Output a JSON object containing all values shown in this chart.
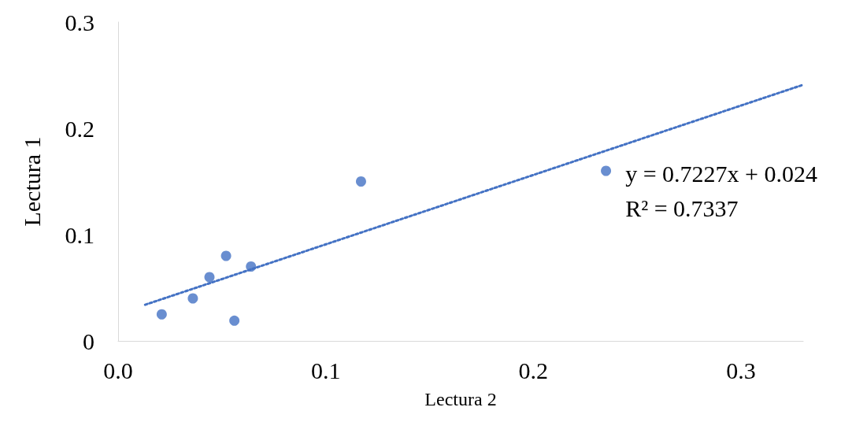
{
  "chart_data": {
    "type": "scatter",
    "xlabel": "Lectura 2",
    "ylabel": "Lectura 1",
    "xlim": [
      0,
      0.33
    ],
    "xticks": [
      {
        "value": 0,
        "label": "0.0"
      },
      {
        "value": 0.1,
        "label": "0.1"
      },
      {
        "value": 0.2,
        "label": "0.2"
      },
      {
        "value": 0.3,
        "label": "0.3"
      }
    ],
    "ylim": [
      0,
      0.3
    ],
    "yticks": [
      0,
      0.1,
      0.2,
      0.3
    ],
    "grid": false,
    "marker": "circle",
    "series": [
      {
        "type": "scatter",
        "color": "#4472c4",
        "x": [
          0.021,
          0.036,
          0.044,
          0.052,
          0.056,
          0.064,
          0.117,
          0.235
        ],
        "values": [
          0.025,
          0.04,
          0.06,
          0.08,
          0.019,
          0.07,
          0.15,
          0.16
        ]
      },
      {
        "type": "line",
        "color": "#4472c4",
        "line_style": "dotted",
        "marker": "none",
        "x": [
          0.013,
          0.33
        ],
        "values": [
          0.034,
          0.241
        ]
      }
    ],
    "annotations": [
      "y = 0.7227x + 0.024",
      "R² = 0.7337"
    ]
  }
}
